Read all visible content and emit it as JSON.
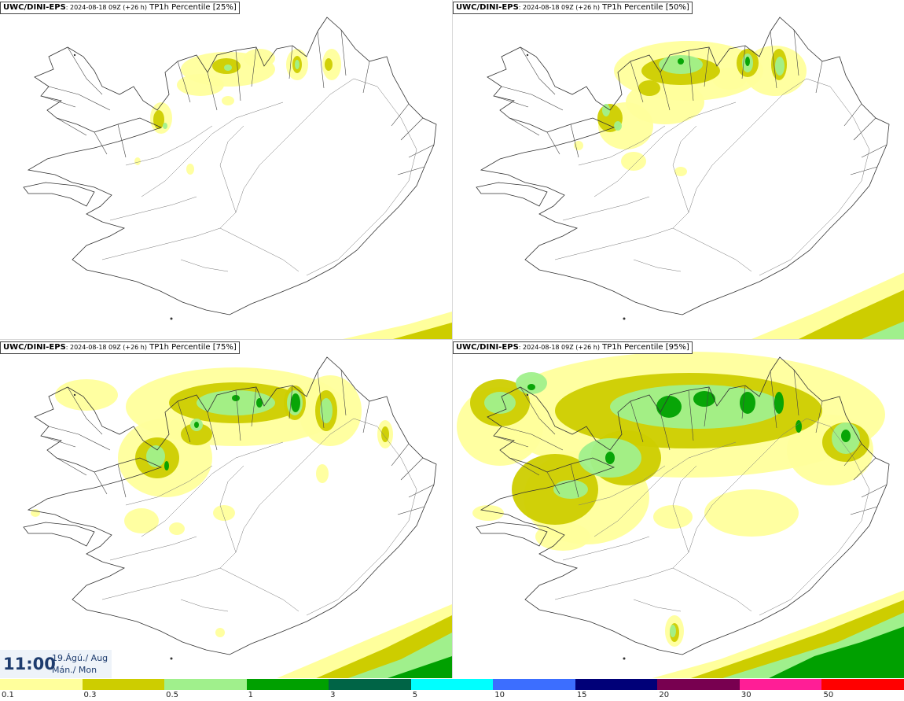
{
  "panels": [
    {
      "model": "UWC/DINI-EPS",
      "meta": ": 2024-08-18 09Z (+26 h)",
      "label": " TP1h Percentile [25%]"
    },
    {
      "model": "UWC/DINI-EPS",
      "meta": ": 2024-08-18 09Z (+26 h)",
      "label": " TP1h Percentile [50%]"
    },
    {
      "model": "UWC/DINI-EPS",
      "meta": ": 2024-08-18 09Z (+26 h)",
      "label": " TP1h Percentile [75%]"
    },
    {
      "model": "UWC/DINI-EPS",
      "meta": ": 2024-08-18 09Z (+26 h)",
      "label": " TP1h Percentile [95%]"
    }
  ],
  "time": {
    "clock": "11:00",
    "date_line1": "19.Ágú./ Aug",
    "date_line2": "Mán./ Mon"
  },
  "legend": {
    "colors": [
      "#ffff9c",
      "#cdcd00",
      "#a0f08c",
      "#00a000",
      "#006446",
      "#00ffff",
      "#3c6eff",
      "#000078",
      "#780050",
      "#ff1e96",
      "#ff0000"
    ],
    "ticks": [
      "0.1",
      "0.3",
      "0.5",
      "1",
      "3",
      "5",
      "10",
      "15",
      "20",
      "30",
      "50"
    ]
  }
}
